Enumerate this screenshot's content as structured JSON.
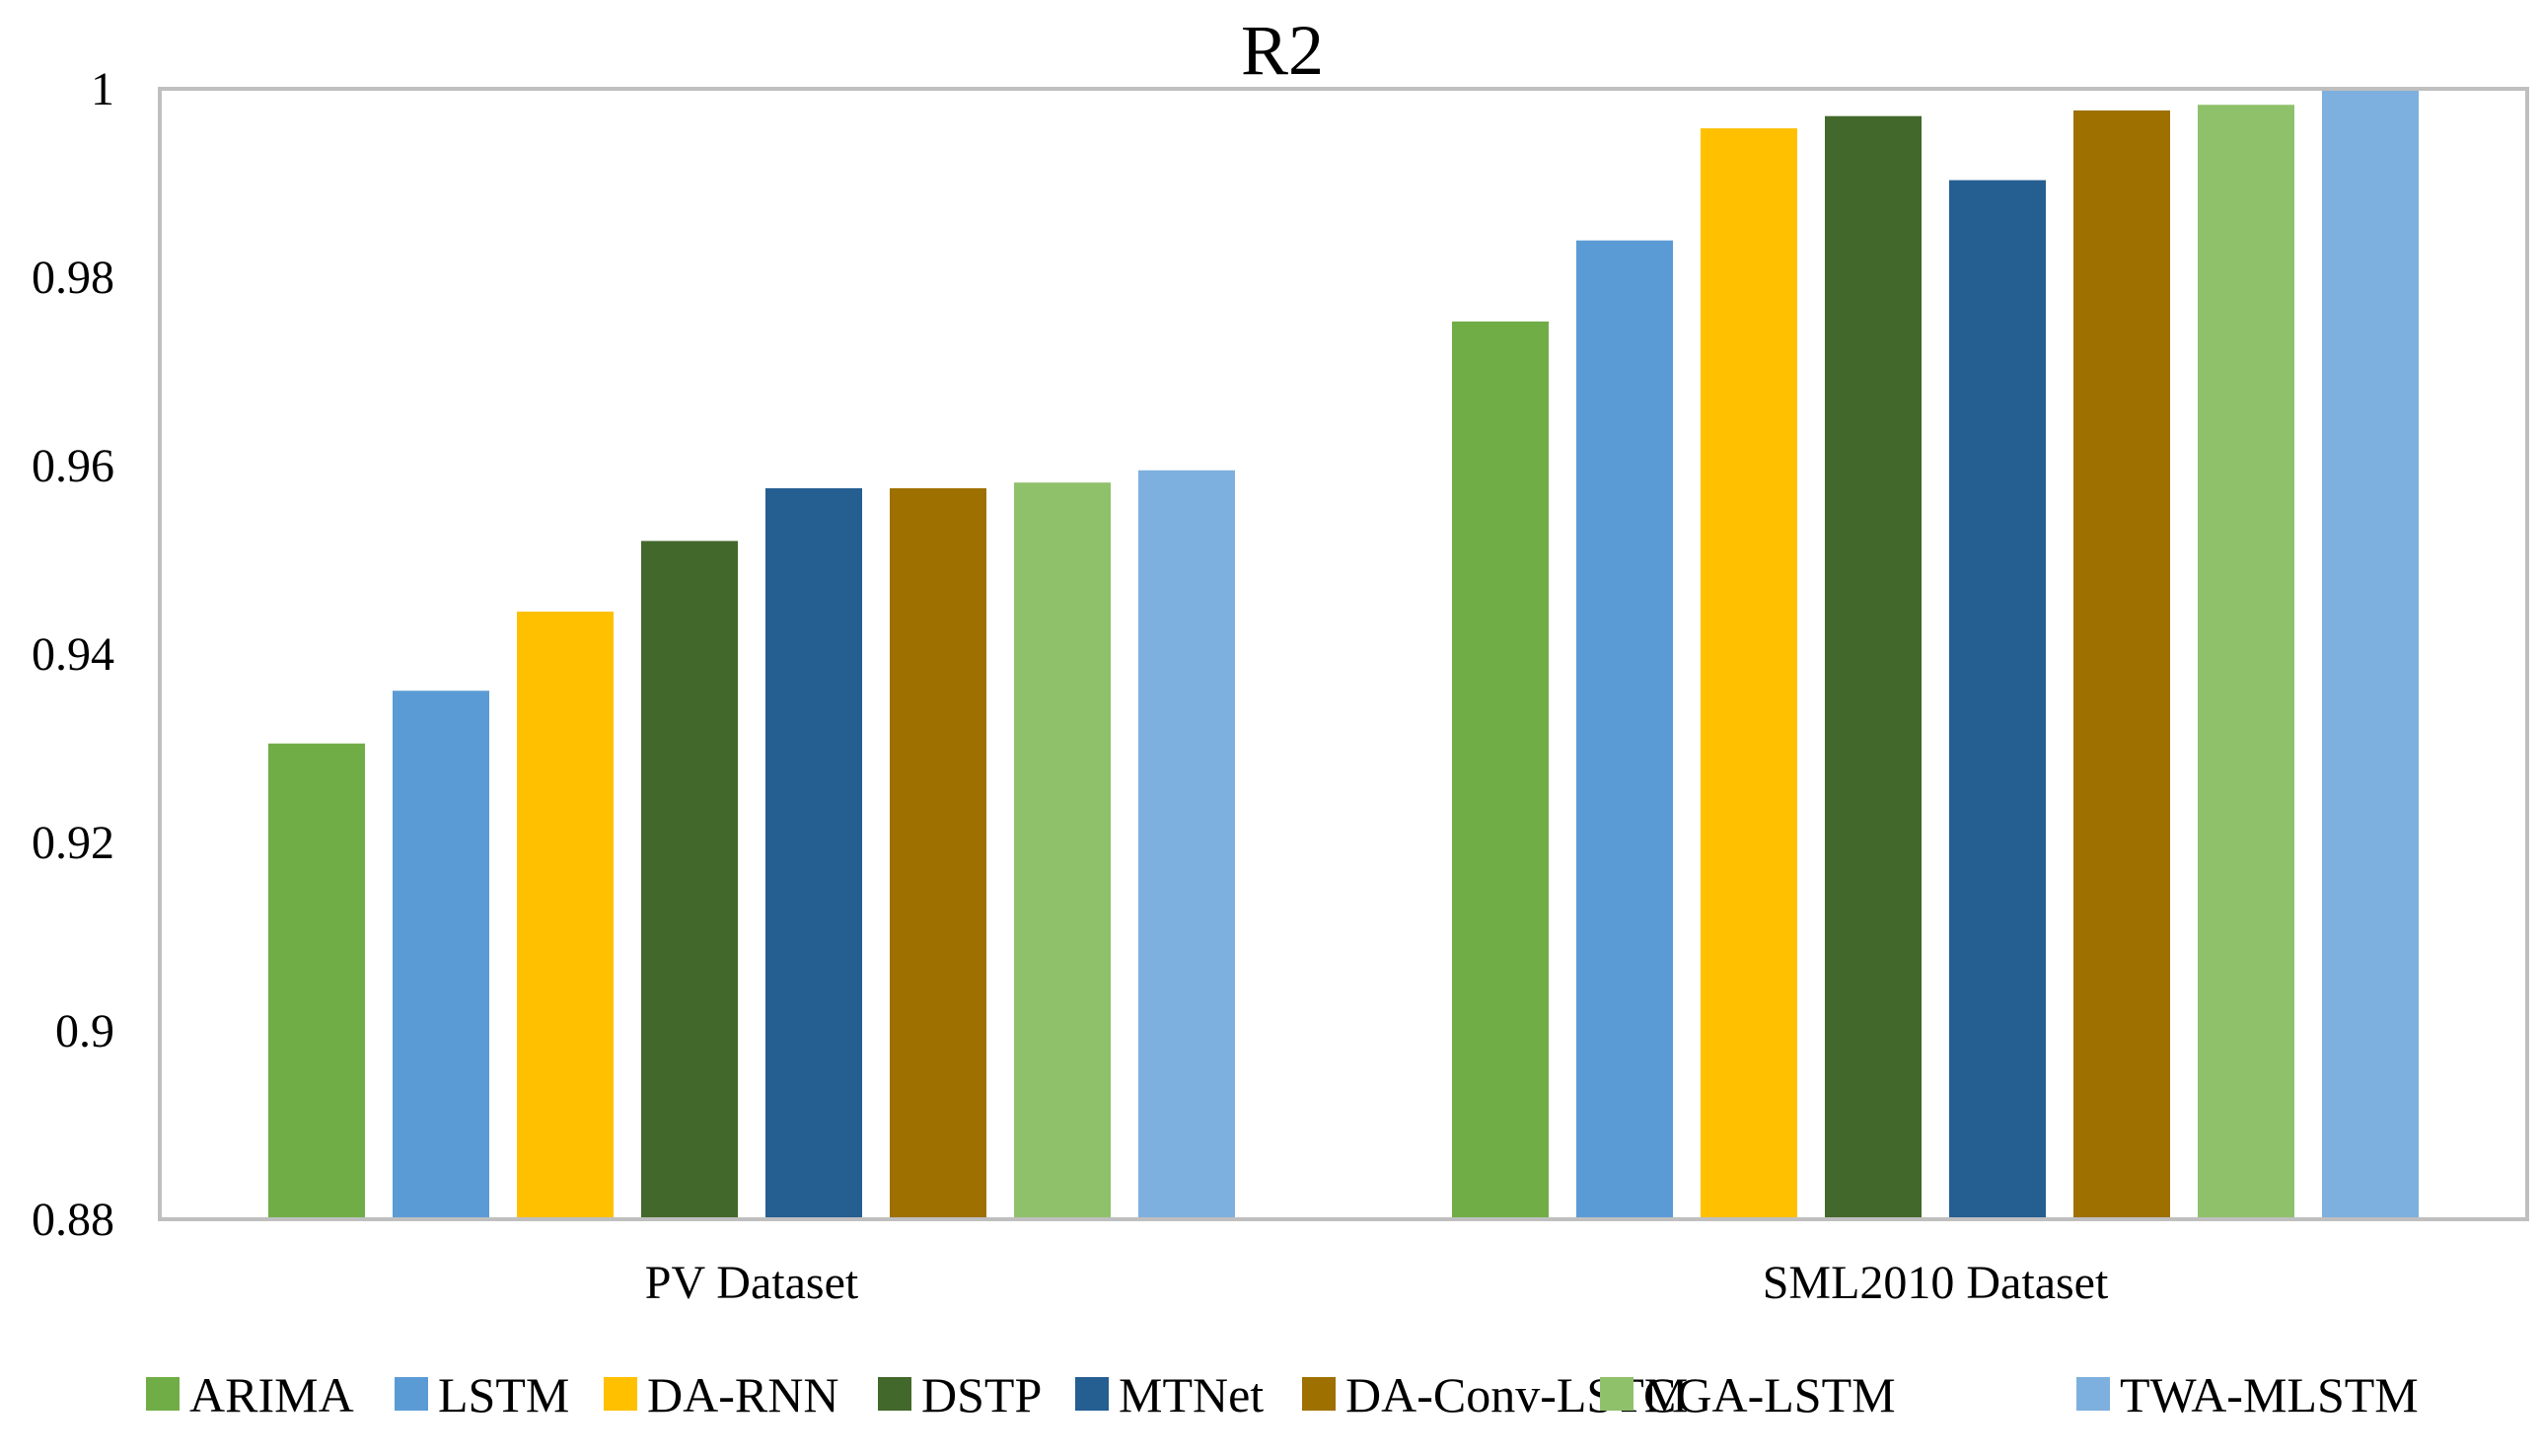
{
  "chart_data": {
    "type": "bar",
    "title": "R2",
    "xlabel": "",
    "ylabel": "",
    "ylim": [
      0.88,
      1.0
    ],
    "yticks": [
      0.88,
      0.9,
      0.92,
      0.94,
      0.96,
      0.98,
      1.0
    ],
    "ytick_labels": [
      "0.88",
      "0.9",
      "0.92",
      "0.94",
      "0.96",
      "0.98",
      "1"
    ],
    "grid": false,
    "legend_position": "bottom",
    "categories": [
      "PV Dataset",
      "SML2010 Dataset"
    ],
    "series": [
      {
        "name": "ARIMA",
        "color": "#70AD47",
        "values": [
          0.9305,
          0.9753
        ]
      },
      {
        "name": "LSTM",
        "color": "#5B9BD5",
        "values": [
          0.9361,
          0.9839
        ]
      },
      {
        "name": "DA-RNN",
        "color": "#FFC000",
        "values": [
          0.9445,
          0.9958
        ]
      },
      {
        "name": "DSTP",
        "color": "#43682B",
        "values": [
          0.952,
          0.9971
        ]
      },
      {
        "name": "MTNet",
        "color": "#255E91",
        "values": [
          0.9576,
          0.9903
        ]
      },
      {
        "name": "DA-Conv-LSTM",
        "color": "#9E7000",
        "values": [
          0.9576,
          0.9977
        ]
      },
      {
        "name": "CGA-LSTM",
        "color": "#8FC16B",
        "values": [
          0.9582,
          0.9983
        ]
      },
      {
        "name": "TWA-MLSTM",
        "color": "#7DB0DE",
        "values": [
          0.9595,
          0.9999
        ]
      }
    ]
  },
  "colors": {
    "axis": "#BFBFBF",
    "text": "#000000",
    "background": "#FFFFFF"
  }
}
